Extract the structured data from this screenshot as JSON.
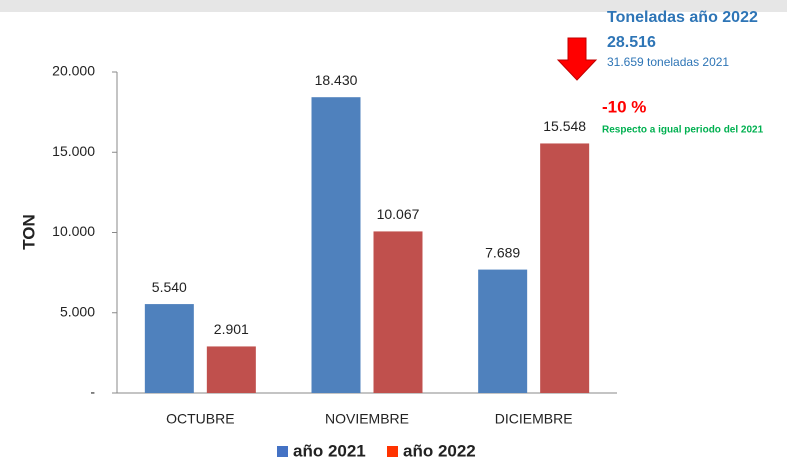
{
  "chart_data": {
    "type": "bar",
    "y_label": "TON",
    "categories": [
      "OCTUBRE",
      "NOVIEMBRE",
      "DICIEMBRE"
    ],
    "series": [
      {
        "name": "año 2021",
        "color": "#4f81bd",
        "legend_color": "#4472c4",
        "values": [
          5540,
          18430,
          7689
        ],
        "value_labels": [
          "5.540",
          "18.430",
          "7.689"
        ]
      },
      {
        "name": "año 2022",
        "color": "#c0504d",
        "legend_color": "#ff3300",
        "values": [
          2901,
          10067,
          15548
        ],
        "value_labels": [
          "2.901",
          "10.067",
          "15.548"
        ]
      }
    ],
    "ylim": [
      0,
      20000
    ],
    "yticks": [
      {
        "value": 0,
        "label": "-"
      },
      {
        "value": 5000,
        "label": "5.000"
      },
      {
        "value": 10000,
        "label": "10.000"
      },
      {
        "value": 15000,
        "label": "15.000"
      },
      {
        "value": 20000,
        "label": "20.000"
      }
    ],
    "annotations": {
      "title": "Toneladas año 2022",
      "total": "28.516",
      "previous": "31.659 toneladas 2021",
      "change": "-10 %",
      "note": "Respecto a igual periodo del 2021"
    }
  }
}
